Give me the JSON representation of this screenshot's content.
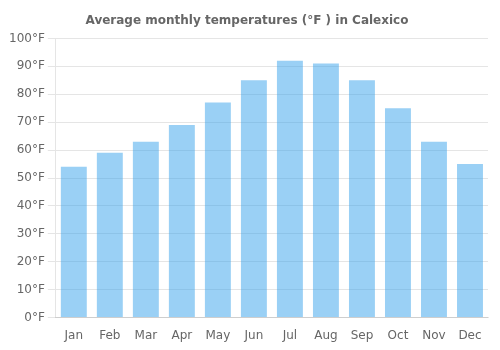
{
  "chart_data": {
    "type": "bar",
    "title": "Average monthly temperatures (°F ) in Calexico",
    "categories": [
      "Jan",
      "Feb",
      "Mar",
      "Apr",
      "May",
      "Jun",
      "Jul",
      "Aug",
      "Sep",
      "Oct",
      "Nov",
      "Dec"
    ],
    "values": [
      54,
      59,
      63,
      69,
      77,
      85,
      92,
      91,
      85,
      75,
      63,
      55
    ],
    "ylim": [
      0,
      100
    ],
    "yticks": [
      {
        "value": 0,
        "label": "0°F"
      },
      {
        "value": 10,
        "label": "10°F"
      },
      {
        "value": 20,
        "label": "20°F"
      },
      {
        "value": 30,
        "label": "30°F"
      },
      {
        "value": 40,
        "label": "40°F"
      },
      {
        "value": 50,
        "label": "50°F"
      },
      {
        "value": 60,
        "label": "60°F"
      },
      {
        "value": 70,
        "label": "70°F"
      },
      {
        "value": 80,
        "label": "80°F"
      },
      {
        "value": 90,
        "label": "90°F"
      },
      {
        "value": 100,
        "label": "100°F"
      }
    ],
    "grid": "y"
  }
}
